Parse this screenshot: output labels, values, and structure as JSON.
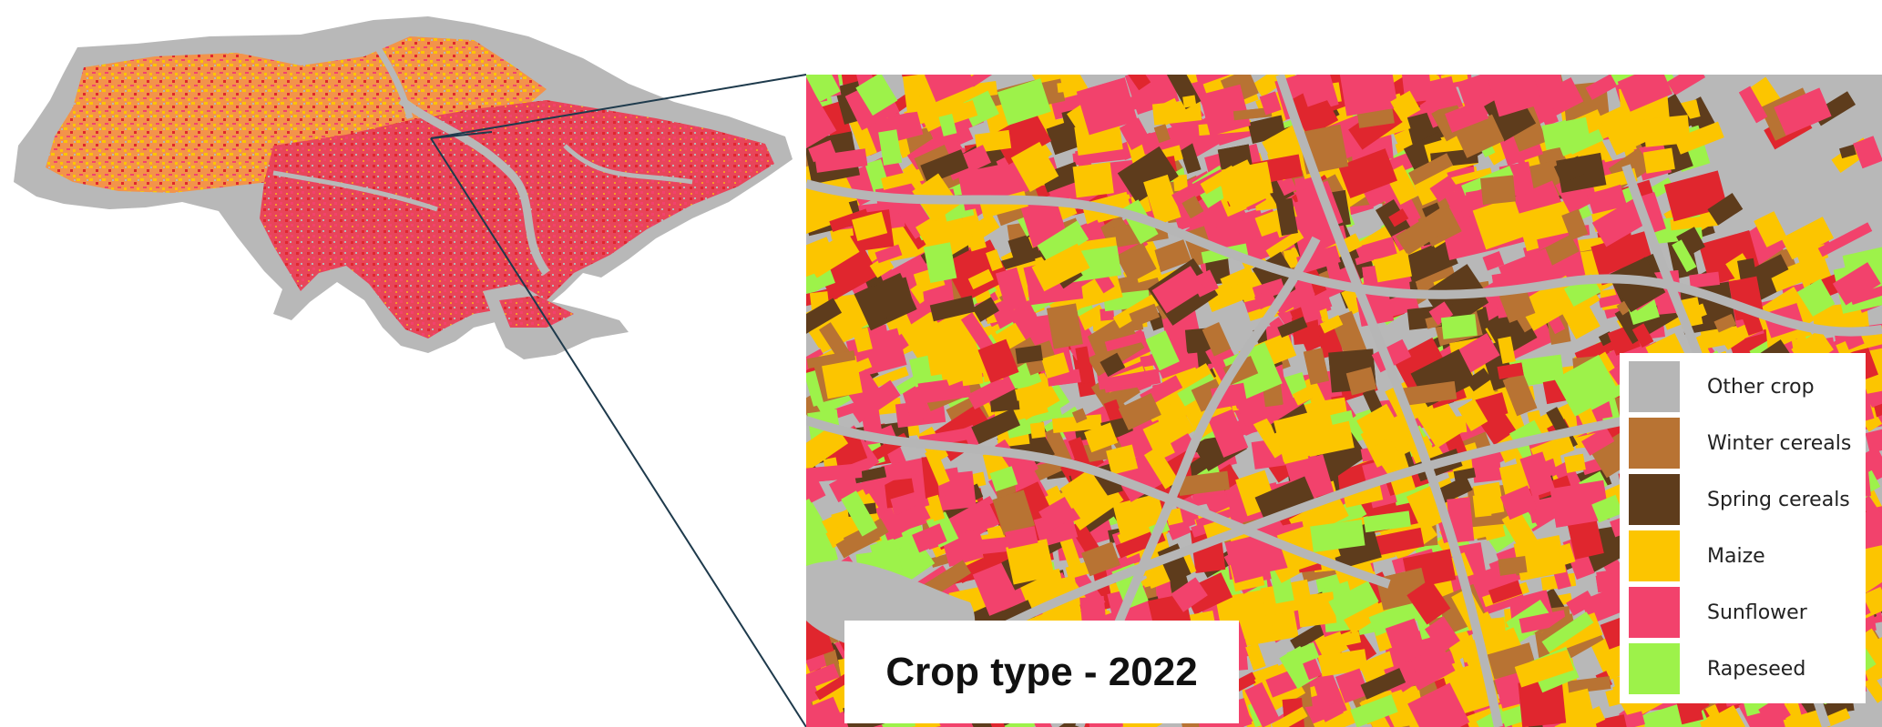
{
  "map": {
    "title": "Crop type - 2022",
    "legend": [
      {
        "label": "Other crop",
        "color": "#b6b6b6"
      },
      {
        "label": "Winter cereals",
        "color": "#b87333"
      },
      {
        "label": "Spring cereals",
        "color": "#5e3c1c"
      },
      {
        "label": "Maize",
        "color": "#fcc500"
      },
      {
        "label": "Sunflower",
        "color": "#f2426c"
      },
      {
        "label": "Rapeseed",
        "color": "#9df24a"
      }
    ],
    "colors": {
      "background_other": "#b8b8b8",
      "dense_red": "#e0262e",
      "connector": "#1e3a4c",
      "orange_mix": "#f59a2a"
    }
  }
}
